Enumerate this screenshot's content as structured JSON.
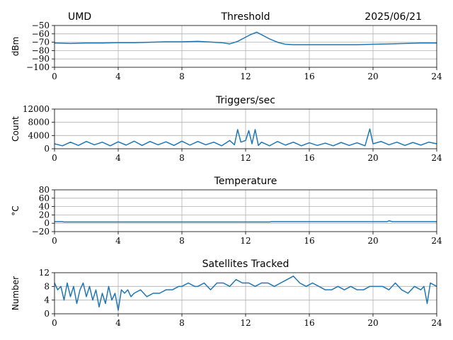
{
  "header": {
    "left": "UMD",
    "right": "2025/06/21"
  },
  "series_color": "#1f77b4",
  "chart_data": [
    {
      "id": "threshold",
      "type": "line",
      "title": "Threshold",
      "xlabel": "",
      "ylabel": "dBm",
      "xlim": [
        0,
        24
      ],
      "ylim": [
        -100,
        -50
      ],
      "xticks": [
        0,
        4,
        8,
        12,
        16,
        20,
        24
      ],
      "yticks": [
        -100,
        -90,
        -80,
        -70,
        -60,
        -50
      ],
      "ytick_labels": [
        "−100",
        "−90",
        "−80",
        "−70",
        "−60",
        "−50"
      ],
      "grid": true,
      "series": [
        {
          "x": [
            0,
            1,
            2,
            3,
            4,
            5,
            6,
            7,
            8,
            9,
            10,
            10.5,
            11,
            11.5,
            12,
            12.3,
            12.7,
            13,
            13.5,
            14,
            14.5,
            15,
            16,
            17,
            18,
            19,
            20,
            21,
            22,
            23,
            24
          ],
          "y": [
            -71,
            -71.5,
            -71,
            -71,
            -70.5,
            -70.5,
            -70,
            -69.5,
            -69.5,
            -69,
            -70,
            -70.5,
            -72,
            -69,
            -64,
            -61,
            -58,
            -61,
            -66,
            -70,
            -72.5,
            -73,
            -73,
            -73,
            -73,
            -73,
            -72.5,
            -72,
            -71.5,
            -71,
            -71
          ]
        }
      ]
    },
    {
      "id": "triggers",
      "type": "line",
      "title": "Triggers/sec",
      "xlabel": "",
      "ylabel": "Count",
      "xlim": [
        0,
        24
      ],
      "ylim": [
        0,
        12000
      ],
      "xticks": [
        0,
        4,
        8,
        12,
        16,
        20,
        24
      ],
      "yticks": [
        0,
        4000,
        8000,
        12000
      ],
      "grid": true,
      "series": [
        {
          "x": [
            0,
            0.5,
            1,
            1.5,
            2,
            2.5,
            3,
            3.5,
            4,
            4.5,
            5,
            5.5,
            6,
            6.5,
            7,
            7.5,
            8,
            8.5,
            9,
            9.5,
            10,
            10.5,
            11,
            11.3,
            11.5,
            11.7,
            12,
            12.2,
            12.4,
            12.6,
            12.8,
            13,
            13.5,
            14,
            14.5,
            15,
            15.5,
            16,
            16.5,
            17,
            17.5,
            18,
            18.5,
            19,
            19.5,
            19.8,
            20,
            20.5,
            21,
            21.5,
            22,
            22.5,
            23,
            23.5,
            24
          ],
          "y": [
            1500,
            900,
            2000,
            1000,
            2200,
            1200,
            2000,
            900,
            2100,
            1100,
            2300,
            1000,
            2200,
            1200,
            2100,
            1000,
            2300,
            1100,
            2200,
            1200,
            2000,
            900,
            2500,
            1200,
            5800,
            2000,
            2500,
            5500,
            1500,
            5800,
            1000,
            2000,
            900,
            2200,
            1100,
            2000,
            900,
            1800,
            1000,
            1700,
            900,
            1900,
            1000,
            1800,
            900,
            6000,
            1500,
            2200,
            1200,
            2000,
            1000,
            1900,
            1100,
            2000,
            1500
          ]
        }
      ]
    },
    {
      "id": "temperature",
      "type": "line",
      "title": "Temperature",
      "xlabel": "",
      "ylabel": "°C",
      "xlim": [
        0,
        24
      ],
      "ylim": [
        -20,
        80
      ],
      "xticks": [
        0,
        4,
        8,
        12,
        16,
        20,
        24
      ],
      "yticks": [
        -20,
        0,
        20,
        40,
        60,
        80
      ],
      "ytick_labels": [
        "−20",
        "0",
        "20",
        "40",
        "60",
        "80"
      ],
      "grid": true,
      "series": [
        {
          "x": [
            0,
            0.5,
            0.6,
            4,
            8,
            12,
            13.5,
            13.6,
            16,
            20,
            20.9,
            21,
            21.2,
            22,
            24
          ],
          "y": [
            4,
            4,
            3,
            3,
            3,
            3,
            3,
            4,
            4,
            4,
            4,
            6,
            4,
            4,
            4
          ]
        }
      ]
    },
    {
      "id": "satellites",
      "type": "line",
      "title": "Satellites Tracked",
      "xlabel": "",
      "ylabel": "Number",
      "xlim": [
        0,
        24
      ],
      "ylim": [
        0,
        12
      ],
      "xticks": [
        0,
        4,
        8,
        12,
        16,
        20,
        24
      ],
      "yticks": [
        0,
        4,
        8,
        12
      ],
      "grid": true,
      "series": [
        {
          "x": [
            0,
            0.2,
            0.4,
            0.6,
            0.8,
            1.0,
            1.2,
            1.4,
            1.6,
            1.8,
            2.0,
            2.2,
            2.4,
            2.6,
            2.8,
            3.0,
            3.2,
            3.4,
            3.6,
            3.8,
            4.0,
            4.2,
            4.4,
            4.6,
            4.8,
            5.0,
            5.4,
            5.8,
            6.2,
            6.6,
            7.0,
            7.4,
            7.8,
            8.0,
            8.4,
            8.8,
            9.0,
            9.4,
            9.8,
            10.2,
            10.6,
            11.0,
            11.4,
            11.8,
            12.2,
            12.6,
            13.0,
            13.4,
            13.8,
            14.2,
            14.6,
            15.0,
            15.4,
            15.8,
            16.2,
            16.6,
            17.0,
            17.4,
            17.8,
            18.2,
            18.6,
            19.0,
            19.4,
            19.8,
            20.2,
            20.6,
            21.0,
            21.4,
            21.8,
            22.2,
            22.6,
            23.0,
            23.2,
            23.4,
            23.6,
            24
          ],
          "y": [
            9,
            7,
            8,
            4,
            9,
            5,
            8,
            3,
            7,
            9,
            5,
            8,
            4,
            7,
            2,
            6,
            3,
            8,
            4,
            6,
            1,
            7,
            6,
            7,
            5,
            6,
            7,
            5,
            6,
            6,
            7,
            7,
            8,
            8,
            9,
            8,
            8,
            9,
            7,
            9,
            9,
            8,
            10,
            9,
            9,
            8,
            9,
            9,
            8,
            9,
            10,
            11,
            9,
            8,
            9,
            8,
            7,
            7,
            8,
            7,
            8,
            7,
            7,
            8,
            8,
            8,
            7,
            9,
            7,
            6,
            8,
            7,
            8,
            3,
            9,
            8
          ]
        }
      ]
    }
  ]
}
